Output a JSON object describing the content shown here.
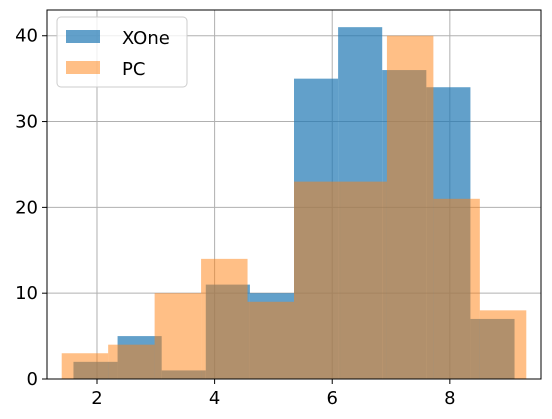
{
  "chart_data": {
    "type": "bar",
    "subtype": "overlaid-histogram",
    "title": "",
    "xlabel": "",
    "ylabel": "",
    "xlim": [
      1.15,
      9.55
    ],
    "ylim": [
      0,
      43
    ],
    "x_ticks": [
      2,
      4,
      6,
      8
    ],
    "y_ticks": [
      0,
      10,
      20,
      30,
      40
    ],
    "grid": true,
    "legend_position": "top-left",
    "series": [
      {
        "name": "XOne",
        "color": "#1f77b4",
        "alpha": 0.7,
        "bin_edges": [
          1.6,
          2.35,
          3.1,
          3.85,
          4.6,
          5.35,
          6.1,
          6.85,
          7.6,
          8.35,
          9.1
        ],
        "values": [
          2,
          5,
          1,
          11,
          10,
          35,
          41,
          36,
          34,
          7
        ]
      },
      {
        "name": "PC",
        "color": "#ff7f0e",
        "alpha": 0.5,
        "bin_edges": [
          1.4,
          2.19,
          2.98,
          3.77,
          4.56,
          5.35,
          6.14,
          6.93,
          7.72,
          8.51,
          9.3
        ],
        "values": [
          3,
          4,
          10,
          14,
          9,
          23,
          23,
          40,
          21,
          8
        ]
      }
    ]
  }
}
